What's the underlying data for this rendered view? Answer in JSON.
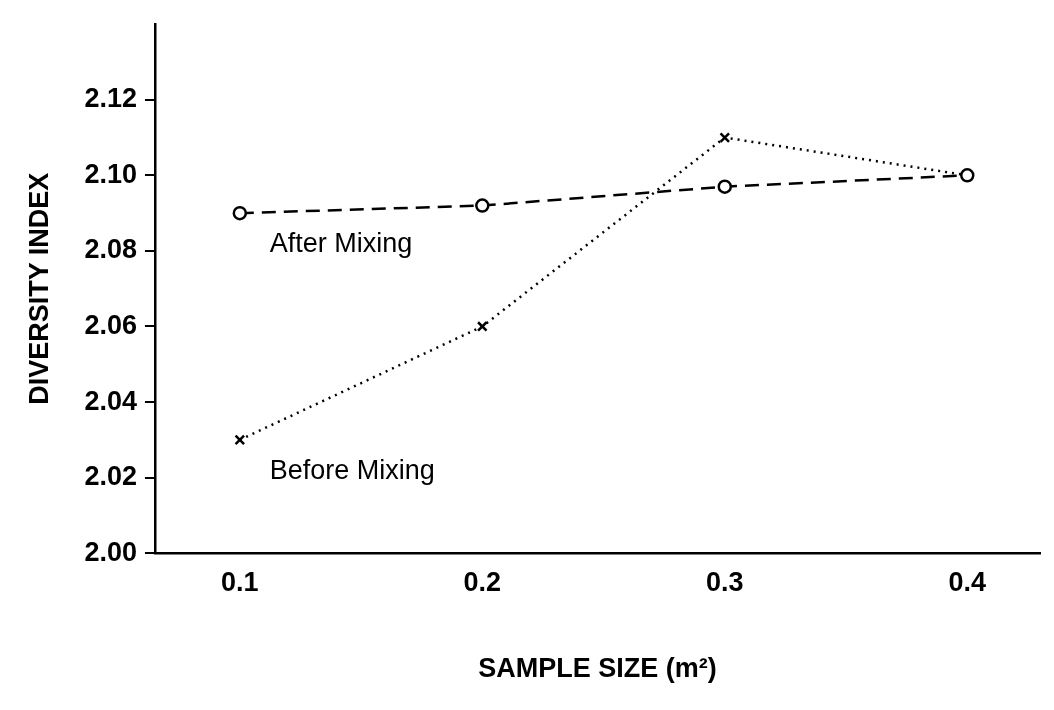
{
  "chart_data": {
    "type": "line",
    "xlabel": "SAMPLE SIZE (m²)",
    "ylabel": "DIVERSITY INDEX",
    "x": [
      0.1,
      0.2,
      0.3,
      0.4
    ],
    "series": [
      {
        "name": "After Mixing",
        "color": "#000000",
        "values": [
          2.09,
          2.092,
          2.097,
          2.1
        ],
        "marker": "circle",
        "line_style": "dashed"
      },
      {
        "name": "Before Mixing",
        "color": "#000000",
        "values": [
          2.03,
          2.06,
          2.11,
          2.1
        ],
        "marker": "cross",
        "line_style": "dotted"
      }
    ],
    "xlim": [
      0.065,
      0.43
    ],
    "xticks": [
      0.1,
      0.2,
      0.3,
      0.4
    ],
    "ylim": [
      2.0,
      2.14
    ],
    "yticks": [
      {
        "value": 2.0,
        "label": "2.00"
      },
      2.02,
      2.04,
      2.06,
      2.08,
      {
        "value": 2.1,
        "label": "2.10"
      },
      2.12
    ],
    "grid": false,
    "legend": false
  }
}
